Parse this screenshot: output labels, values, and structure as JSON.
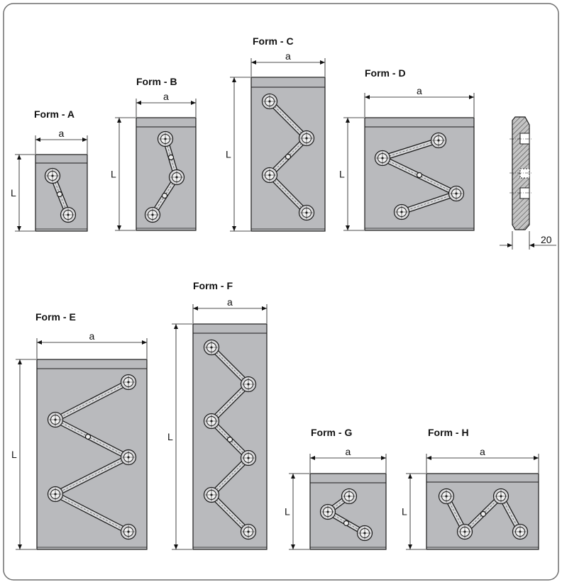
{
  "forms": [
    {
      "id": "A",
      "title": "Form - A",
      "width_label": "a",
      "length_label": "L"
    },
    {
      "id": "B",
      "title": "Form - B",
      "width_label": "a",
      "length_label": "L"
    },
    {
      "id": "C",
      "title": "Form - C",
      "width_label": "a",
      "length_label": "L"
    },
    {
      "id": "D",
      "title": "Form - D",
      "width_label": "a",
      "length_label": "L"
    },
    {
      "id": "E",
      "title": "Form - E",
      "width_label": "a",
      "length_label": "L"
    },
    {
      "id": "F",
      "title": "Form - F",
      "width_label": "a",
      "length_label": "L"
    },
    {
      "id": "G",
      "title": "Form - G",
      "width_label": "a",
      "length_label": "L"
    },
    {
      "id": "H",
      "title": "Form - H",
      "width_label": "a",
      "length_label": "L"
    }
  ],
  "side_view": {
    "thickness_label": "20"
  },
  "colors": {
    "plate": "#b9babd",
    "stroke": "#1a1a1a",
    "frame": "#6f6f6f"
  }
}
